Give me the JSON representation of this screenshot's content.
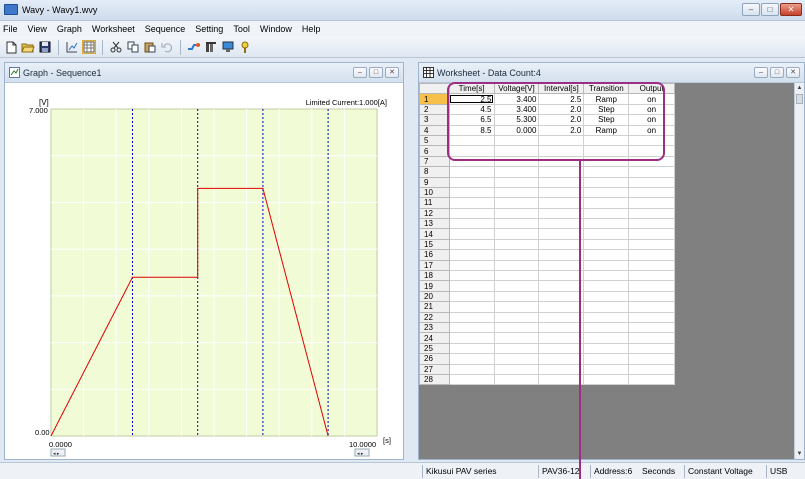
{
  "app": {
    "title": "Wavy - Wavy1.wvy",
    "window_buttons": {
      "minimize": "–",
      "maximize": "□",
      "close": "✕"
    }
  },
  "menu": [
    "File",
    "View",
    "Graph",
    "Worksheet",
    "Sequence",
    "Setting",
    "Tool",
    "Window",
    "Help"
  ],
  "toolbar": {
    "buttons": [
      "new-file",
      "open-folder",
      "save",
      "graph-view",
      "worksheet-view",
      "cut",
      "copy",
      "paste",
      "undo",
      "connect",
      "settings",
      "monitor",
      "help"
    ]
  },
  "graph_window": {
    "title": "Graph - Sequence1",
    "y_unit": "[V]",
    "y_max_label": "7.000",
    "y_min_label": "0.00",
    "x_min_label": "0.0000",
    "x_max_label": "10.0000",
    "x_unit": "[s]",
    "limit_text": "Limited Current:1.000[A]",
    "colors": {
      "plot_bg": "#f1fbd6",
      "line": "#e00000",
      "marker": "#0000cc",
      "grid": "#ffffff"
    }
  },
  "chart_data": {
    "type": "line",
    "xlim": [
      0,
      10
    ],
    "ylim": [
      0,
      7
    ],
    "series": [
      {
        "x": [
          0,
          2.5,
          4.5,
          4.5,
          6.5,
          6.5,
          8.5
        ],
        "y": [
          0,
          3.4,
          3.4,
          5.3,
          5.3,
          5.3,
          0
        ]
      }
    ],
    "step_markers_x": [
      2.5,
      4.5,
      6.5,
      8.5
    ]
  },
  "worksheet_window": {
    "title": "Worksheet - Data Count:4",
    "columns": [
      "Time[s]",
      "Voltage[V]",
      "Interval[s]",
      "Transition",
      "Output"
    ],
    "rows": [
      [
        "2.5",
        "3.400",
        "2.5",
        "Ramp",
        "on"
      ],
      [
        "4.5",
        "3.400",
        "2.0",
        "Step",
        "on"
      ],
      [
        "6.5",
        "5.300",
        "2.0",
        "Step",
        "on"
      ],
      [
        "8.5",
        "0.000",
        "2.0",
        "Ramp",
        "on"
      ]
    ],
    "row_numbers": [
      "1",
      "2",
      "3",
      "4",
      "5",
      "6",
      "7",
      "8",
      "9",
      "10",
      "11",
      "12",
      "13",
      "14",
      "15",
      "16",
      "17",
      "18",
      "19",
      "20",
      "21",
      "22",
      "23",
      "24",
      "25",
      "26",
      "27",
      "28"
    ],
    "scroll_up": "▲",
    "scroll_down": "▼"
  },
  "status": {
    "series": "Kikusui PAV series",
    "model": "PAV36-12",
    "address": "Address:6",
    "units": "Seconds",
    "mode": "Constant Voltage",
    "interface": "USB"
  },
  "annotation_color": "#9b2f86"
}
